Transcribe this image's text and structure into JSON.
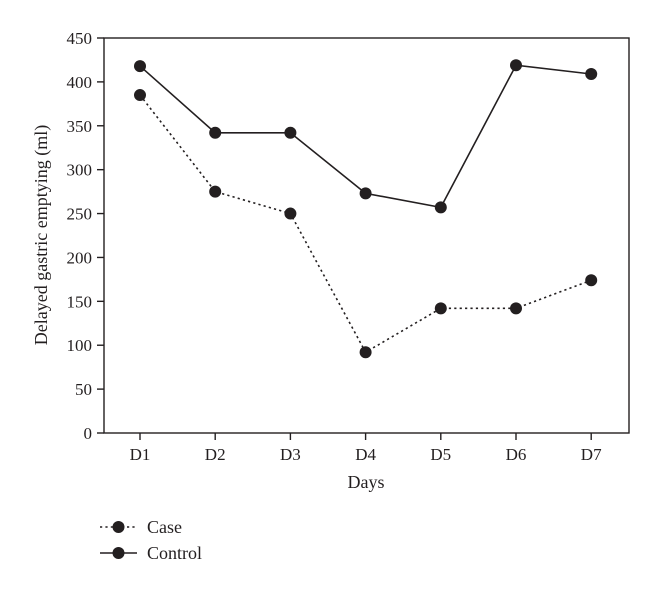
{
  "chart_data": {
    "type": "line",
    "title": "",
    "xlabel": "Days",
    "ylabel": "Delayed gastric emptying (ml)",
    "categories": [
      "D1",
      "D2",
      "D3",
      "D4",
      "D5",
      "D6",
      "D7"
    ],
    "ylim": [
      0,
      450
    ],
    "yticks": [
      0,
      50,
      100,
      150,
      200,
      250,
      300,
      350,
      400,
      450
    ],
    "grid": false,
    "legend_position": "bottom-left",
    "series": [
      {
        "name": "Case",
        "line_style": "dotted",
        "values": [
          385,
          275,
          250,
          92,
          142,
          142,
          174
        ]
      },
      {
        "name": "Control",
        "line_style": "solid",
        "values": [
          418,
          342,
          342,
          273,
          257,
          419,
          409
        ]
      }
    ],
    "colors": {
      "line": "#231f20",
      "marker": "#231f20",
      "axis": "#231f20"
    }
  }
}
